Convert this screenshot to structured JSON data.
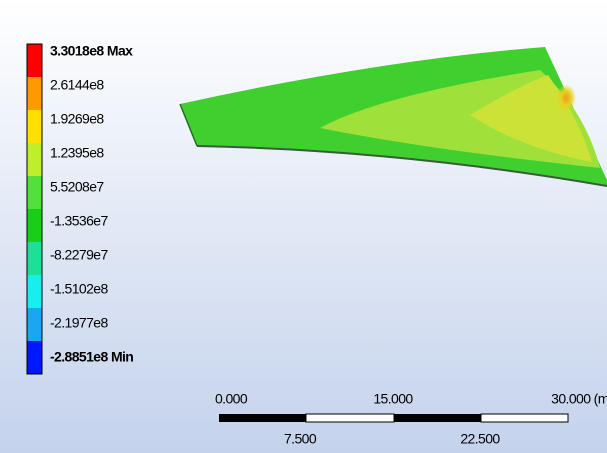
{
  "legend": {
    "labels": [
      "3.3018e8 Max",
      "2.6144e8",
      "1.9269e8",
      "1.2395e8",
      "5.5208e7",
      "-1.3536e7",
      "-8.2279e7",
      "-1.5102e8",
      "-2.1977e8",
      "-2.8851e8 Min"
    ],
    "colors": [
      "#ff0000",
      "#ff9900",
      "#ffe000",
      "#bfef2a",
      "#52e03a",
      "#18cf18",
      "#1cdf98",
      "#19eeee",
      "#1aa6f0",
      "#0018ff"
    ]
  },
  "scale_bar": {
    "top_labels": [
      "0.000",
      "15.000",
      "30.000 (m"
    ],
    "bottom_labels": [
      "7.500",
      "22.500"
    ]
  }
}
